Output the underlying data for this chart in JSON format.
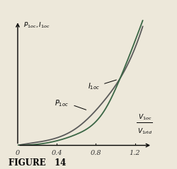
{
  "title": "FIGURE   14",
  "ylabel": "P_{1oc}, I_{1oc}",
  "x_ticks": [
    0.0,
    0.4,
    0.8,
    1.2
  ],
  "x_ticks_labels": [
    "0",
    "0.4",
    "0.8",
    "1.2"
  ],
  "xlim": [
    0,
    1.45
  ],
  "ylim": [
    0,
    1.05
  ],
  "curve_color_I": "#3a6645",
  "curve_color_P": "#5a5a5a",
  "background_color": "#ede8da",
  "label_I": "I_{1oc}",
  "label_P": "P_{1oc}",
  "figsize": [
    2.5,
    2.39
  ],
  "dpi": 100,
  "caption": "FIGURE   14"
}
